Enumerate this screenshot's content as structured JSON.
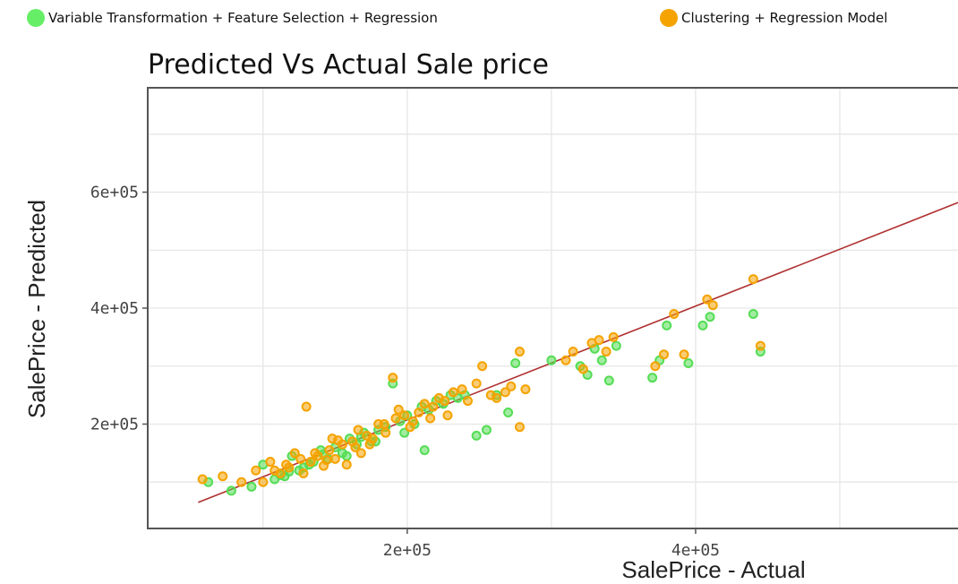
{
  "legend": {
    "items": [
      {
        "label": "Variable Transformation + Feature Selection + Regression",
        "color": "#66ee66"
      },
      {
        "label": "Clustering + Regression Model",
        "color": "#f5a300"
      }
    ]
  },
  "chart_data": {
    "type": "scatter",
    "title": "Predicted Vs Actual Sale price",
    "xlabel": "SalePrice - Actual",
    "ylabel": "SalePrice - Predicted",
    "xlim": [
      20000,
      582000
    ],
    "ylim": [
      20000,
      780000
    ],
    "x_ticks": [
      200000,
      400000
    ],
    "x_tick_labels": [
      "2e+05",
      "4e+05"
    ],
    "y_ticks": [
      200000,
      400000,
      600000
    ],
    "y_tick_labels": [
      "2e+05",
      "4e+05",
      "6e+05"
    ],
    "grid": true,
    "legend_position": "top",
    "reference_line": {
      "from": [
        55000,
        65000
      ],
      "to": [
        582000,
        582000
      ],
      "color": "#b03030"
    },
    "series": [
      {
        "name": "Variable Transformation + Feature Selection + Regression",
        "color": "#55dd55",
        "points": [
          [
            62000,
            100000
          ],
          [
            78000,
            85000
          ],
          [
            92000,
            92000
          ],
          [
            100000,
            130000
          ],
          [
            108000,
            105000
          ],
          [
            115000,
            110000
          ],
          [
            120000,
            145000
          ],
          [
            125000,
            120000
          ],
          [
            132000,
            130000
          ],
          [
            140000,
            155000
          ],
          [
            145000,
            140000
          ],
          [
            150000,
            160000
          ],
          [
            155000,
            150000
          ],
          [
            160000,
            175000
          ],
          [
            165000,
            165000
          ],
          [
            170000,
            185000
          ],
          [
            175000,
            170000
          ],
          [
            180000,
            190000
          ],
          [
            185000,
            195000
          ],
          [
            190000,
            270000
          ],
          [
            195000,
            205000
          ],
          [
            200000,
            215000
          ],
          [
            205000,
            200000
          ],
          [
            210000,
            230000
          ],
          [
            215000,
            225000
          ],
          [
            220000,
            240000
          ],
          [
            225000,
            235000
          ],
          [
            230000,
            250000
          ],
          [
            235000,
            245000
          ],
          [
            240000,
            250000
          ],
          [
            248000,
            180000
          ],
          [
            255000,
            190000
          ],
          [
            262000,
            250000
          ],
          [
            270000,
            220000
          ],
          [
            275000,
            305000
          ],
          [
            300000,
            310000
          ],
          [
            320000,
            300000
          ],
          [
            325000,
            285000
          ],
          [
            330000,
            330000
          ],
          [
            335000,
            310000
          ],
          [
            340000,
            275000
          ],
          [
            345000,
            335000
          ],
          [
            370000,
            280000
          ],
          [
            375000,
            310000
          ],
          [
            380000,
            370000
          ],
          [
            395000,
            305000
          ],
          [
            405000,
            370000
          ],
          [
            410000,
            385000
          ],
          [
            440000,
            390000
          ],
          [
            445000,
            325000
          ],
          [
            135000,
            135000
          ],
          [
            128000,
            125000
          ],
          [
            118000,
            118000
          ],
          [
            158000,
            145000
          ],
          [
            178000,
            170000
          ],
          [
            198000,
            185000
          ],
          [
            212000,
            155000
          ],
          [
            168000,
            178000
          ],
          [
            142000,
            148000
          ],
          [
            112000,
            112000
          ]
        ]
      },
      {
        "name": "Clustering + Regression Model",
        "color": "#f5a300",
        "points": [
          [
            58000,
            105000
          ],
          [
            72000,
            110000
          ],
          [
            85000,
            100000
          ],
          [
            95000,
            120000
          ],
          [
            100000,
            100000
          ],
          [
            105000,
            135000
          ],
          [
            112000,
            115000
          ],
          [
            118000,
            125000
          ],
          [
            122000,
            150000
          ],
          [
            128000,
            115000
          ],
          [
            130000,
            230000
          ],
          [
            133000,
            135000
          ],
          [
            138000,
            145000
          ],
          [
            142000,
            128000
          ],
          [
            146000,
            155000
          ],
          [
            150000,
            140000
          ],
          [
            155000,
            165000
          ],
          [
            158000,
            130000
          ],
          [
            162000,
            170000
          ],
          [
            168000,
            150000
          ],
          [
            172000,
            180000
          ],
          [
            176000,
            175000
          ],
          [
            180000,
            200000
          ],
          [
            185000,
            185000
          ],
          [
            190000,
            280000
          ],
          [
            192000,
            210000
          ],
          [
            198000,
            215000
          ],
          [
            202000,
            195000
          ],
          [
            208000,
            220000
          ],
          [
            212000,
            235000
          ],
          [
            218000,
            230000
          ],
          [
            222000,
            245000
          ],
          [
            228000,
            215000
          ],
          [
            232000,
            255000
          ],
          [
            238000,
            260000
          ],
          [
            242000,
            240000
          ],
          [
            248000,
            270000
          ],
          [
            252000,
            300000
          ],
          [
            258000,
            250000
          ],
          [
            262000,
            245000
          ],
          [
            268000,
            255000
          ],
          [
            272000,
            265000
          ],
          [
            278000,
            195000
          ],
          [
            282000,
            260000
          ],
          [
            278000,
            325000
          ],
          [
            310000,
            310000
          ],
          [
            315000,
            325000
          ],
          [
            322000,
            295000
          ],
          [
            328000,
            340000
          ],
          [
            333000,
            345000
          ],
          [
            338000,
            325000
          ],
          [
            343000,
            350000
          ],
          [
            372000,
            300000
          ],
          [
            378000,
            320000
          ],
          [
            385000,
            390000
          ],
          [
            392000,
            320000
          ],
          [
            408000,
            415000
          ],
          [
            412000,
            405000
          ],
          [
            440000,
            450000
          ],
          [
            445000,
            335000
          ],
          [
            126000,
            140000
          ],
          [
            136000,
            150000
          ],
          [
            144000,
            138000
          ],
          [
            152000,
            172000
          ],
          [
            164000,
            160000
          ],
          [
            174000,
            165000
          ],
          [
            184000,
            200000
          ],
          [
            194000,
            225000
          ],
          [
            204000,
            205000
          ],
          [
            216000,
            210000
          ],
          [
            226000,
            240000
          ],
          [
            116000,
            130000
          ],
          [
            108000,
            120000
          ],
          [
            148000,
            175000
          ],
          [
            166000,
            190000
          ]
        ]
      }
    ]
  }
}
